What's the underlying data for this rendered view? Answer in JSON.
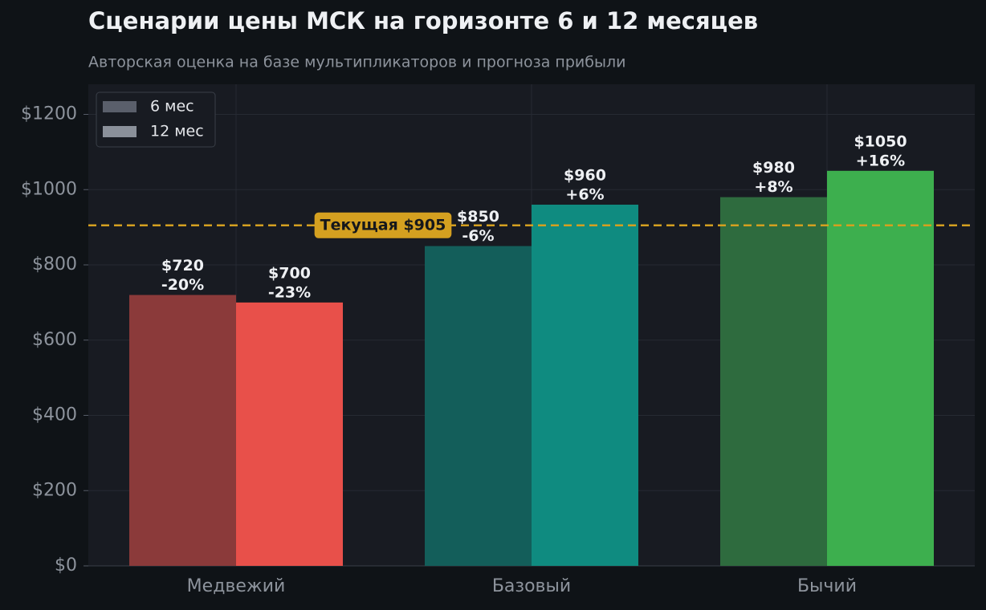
{
  "chart_data": {
    "type": "bar",
    "title": "Сценарии цены МСК на горизонте 6 и 12 месяцев",
    "subtitle": "Авторская оценка на базе мультипликаторов и прогноза прибыли",
    "categories": [
      "Медвежий",
      "Базовый",
      "Бычий"
    ],
    "series": [
      {
        "name": "6 мес",
        "color": "#5a5f6b",
        "colors": [
          "#8b3a3a",
          "#135e5a",
          "#2e6b3e"
        ],
        "values": [
          720,
          850,
          980
        ],
        "value_labels": [
          "$720",
          "$850",
          "$980"
        ],
        "change_labels": [
          "-20%",
          "-6%",
          "+8%"
        ]
      },
      {
        "name": "12 мес",
        "color": "#8a909a",
        "colors": [
          "#e8504a",
          "#0f8b80",
          "#3daf4e"
        ],
        "values": [
          700,
          960,
          1050
        ],
        "value_labels": [
          "$700",
          "$960",
          "$1050"
        ],
        "change_labels": [
          "-23%",
          "+6%",
          "+16%"
        ]
      }
    ],
    "reference": {
      "value": 905,
      "label": "Текущая $905",
      "color": "#d4a020"
    },
    "ylim": [
      0,
      1280
    ],
    "yticks": [
      {
        "value": 0,
        "label": "$0"
      },
      {
        "value": 200,
        "label": "$200"
      },
      {
        "value": 400,
        "label": "$400"
      },
      {
        "value": 600,
        "label": "$600"
      },
      {
        "value": 800,
        "label": "$800"
      },
      {
        "value": 1000,
        "label": "$1000"
      },
      {
        "value": 1200,
        "label": "$1200"
      }
    ],
    "grid": true,
    "legend": "upper left"
  }
}
